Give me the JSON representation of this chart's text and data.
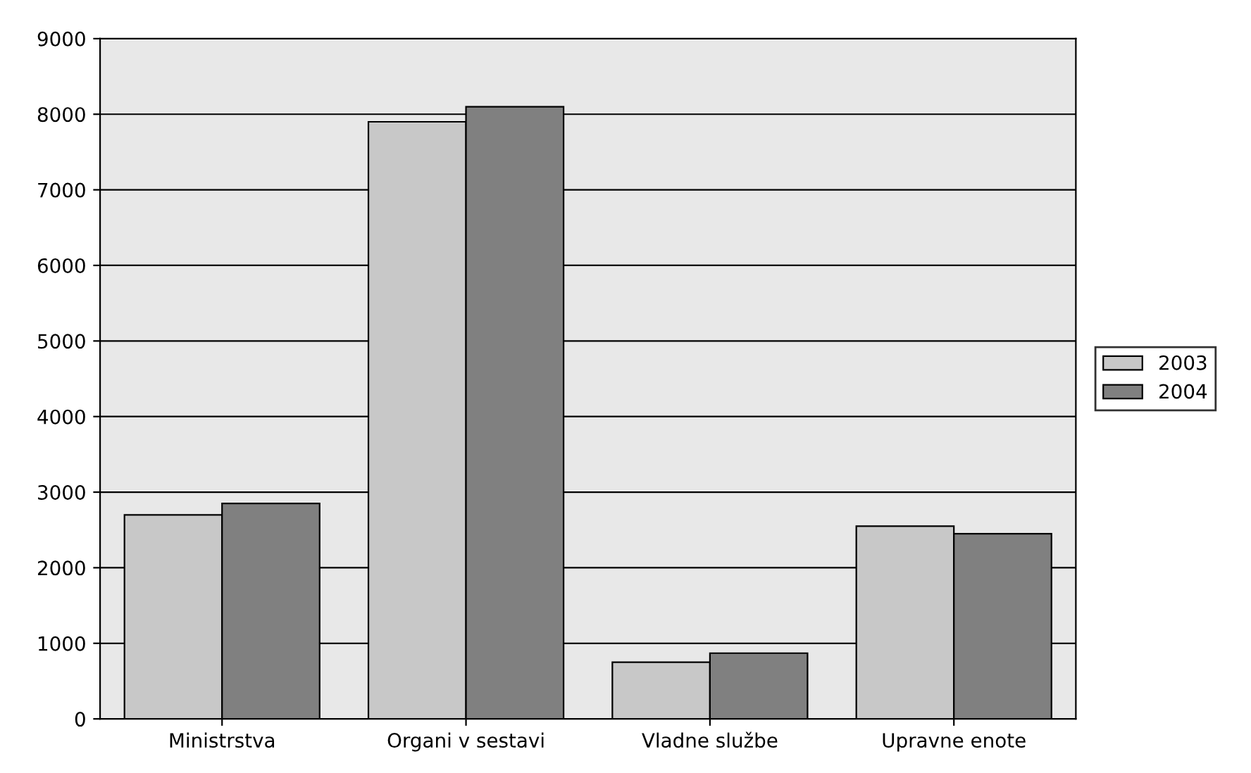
{
  "chart_data": {
    "type": "bar",
    "categories": [
      "Ministrstva",
      "Organi v sestavi",
      "Vladne službe",
      "Upravne enote"
    ],
    "series": [
      {
        "name": "2003",
        "color": "#c8c8c8",
        "values": [
          2700,
          7900,
          750,
          2550
        ]
      },
      {
        "name": "2004",
        "color": "#808080",
        "values": [
          2850,
          8100,
          870,
          2450
        ]
      }
    ],
    "ylim": [
      0,
      9000
    ],
    "yticks": [
      0,
      1000,
      2000,
      3000,
      4000,
      5000,
      6000,
      7000,
      8000,
      9000
    ],
    "grid": "y",
    "legend": "right"
  }
}
